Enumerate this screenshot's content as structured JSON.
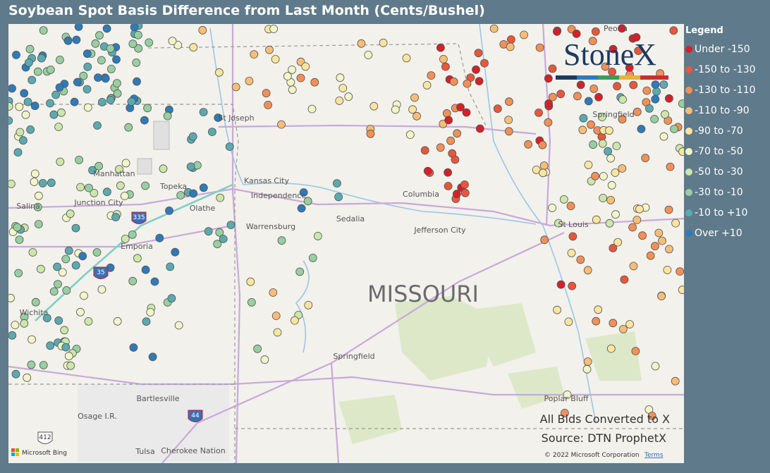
{
  "header": {
    "title": "Soybean Spot Basis Difference from Last Month (Cents/Bushel)"
  },
  "legend": {
    "title": "Legend",
    "items": [
      {
        "label": "Under -150",
        "color": "#d62027"
      },
      {
        "label": "-150 to -130",
        "color": "#e8573b"
      },
      {
        "label": "-130 to -110",
        "color": "#f29057"
      },
      {
        "label": "-110 to -90",
        "color": "#f8bd76"
      },
      {
        "label": "-90 to -70",
        "color": "#fbe59e"
      },
      {
        "label": "-70 to -50",
        "color": "#f1f5c8"
      },
      {
        "label": "-50 to -30",
        "color": "#cbe7aa"
      },
      {
        "label": "-30 to -10",
        "color": "#97cfa0"
      },
      {
        "label": "-10 to +10",
        "color": "#5aaab0"
      },
      {
        "label": "Over +10",
        "color": "#2f7ab8"
      }
    ]
  },
  "map": {
    "labels": [
      "St Joseph",
      "Kansas City",
      "Independence",
      "Manhattan",
      "Topeka",
      "Junction City",
      "Salina",
      "Olathe",
      "Emporia",
      "Wichita",
      "Columbia",
      "Sedalia",
      "Warrensburg",
      "Jefferson City",
      "St Louis",
      "Springfield",
      "Springfield",
      "Bartlesville",
      "Osage I.R.",
      "Tulsa",
      "Cherokee Nation",
      "Poplar Bluff",
      "Peoria",
      "MISSOURI"
    ],
    "shields": [
      "335",
      "35",
      "44",
      "412"
    ]
  },
  "logo": {
    "text": "StoneX"
  },
  "notes": [
    "All Bids Converted to X",
    "Source: DTN ProphetX"
  ],
  "footer": {
    "copyright": "© 2022 Microsoft Corporation",
    "terms": "Terms",
    "bing": "Microsoft Bing"
  }
}
